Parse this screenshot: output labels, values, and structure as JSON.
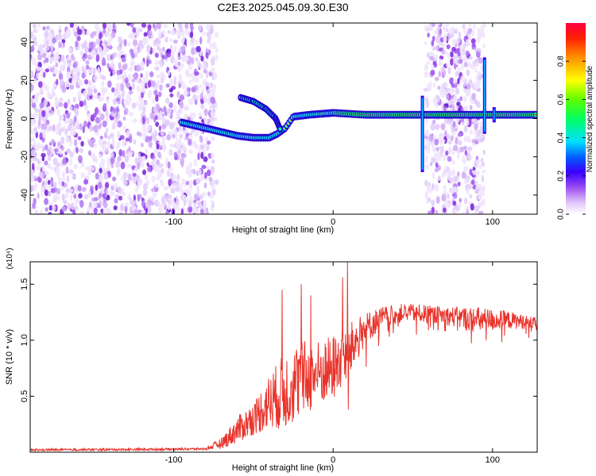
{
  "title": "C2E3.2025.045.09.30.E30",
  "chart_data": [
    {
      "type": "heatmap",
      "xlabel": "Height of straight line (km)",
      "ylabel": "Frequency (Hz)",
      "xlim": [
        -190,
        128
      ],
      "ylim": [
        -50,
        50
      ],
      "x_ticks": [
        -100,
        0,
        100
      ],
      "y_ticks": [
        -40,
        -20,
        0,
        20,
        40
      ],
      "colorbar": {
        "label": "Normalized spectral amplitude",
        "range": [
          0,
          1
        ],
        "ticks": [
          "0.0",
          "0.2",
          "0.4",
          "0.6",
          "0.8"
        ],
        "tick_values": [
          0.0,
          0.2,
          0.4,
          0.6,
          0.8
        ],
        "colormap": [
          "#ffffff",
          "#d8b8f8",
          "#8a2be2",
          "#0000ff",
          "#00ffff",
          "#00ff00",
          "#ffff00",
          "#ff8000",
          "#ff0000"
        ]
      },
      "noise_regions": [
        {
          "x": [
            -190,
            -73
          ],
          "y": [
            -50,
            50
          ]
        },
        {
          "x": [
            58,
            95
          ],
          "y": [
            -50,
            50
          ]
        }
      ],
      "signal_track": [
        {
          "x": -95,
          "y": -2
        },
        {
          "x": -80,
          "y": -5
        },
        {
          "x": -70,
          "y": -7
        },
        {
          "x": -60,
          "y": -9
        },
        {
          "x": -50,
          "y": -10
        },
        {
          "x": -40,
          "y": -10
        },
        {
          "x": -35,
          "y": -8
        },
        {
          "x": -30,
          "y": -5
        },
        {
          "x": -25,
          "y": 1
        },
        {
          "x": -15,
          "y": 2
        },
        {
          "x": 0,
          "y": 3
        },
        {
          "x": 20,
          "y": 2
        },
        {
          "x": 50,
          "y": 2
        },
        {
          "x": 56,
          "y": 2
        },
        {
          "x": 62,
          "y": 2
        },
        {
          "x": 95,
          "y": 2
        },
        {
          "x": 100,
          "y": 2
        },
        {
          "x": 128,
          "y": 2
        }
      ],
      "secondary_track": [
        {
          "x": -58,
          "y": 11
        },
        {
          "x": -50,
          "y": 9
        },
        {
          "x": -42,
          "y": 5
        },
        {
          "x": -36,
          "y": 0
        },
        {
          "x": -33,
          "y": -6
        }
      ]
    },
    {
      "type": "line",
      "xlabel": "Height of straight line (km)",
      "ylabel": "SNR (10 * v/v)",
      "y_multiplier": "(x10⁴)",
      "xlim": [
        -190,
        128
      ],
      "ylim": [
        0,
        1.7
      ],
      "x_ticks": [
        -100,
        0,
        100
      ],
      "y_ticks": [
        0.5,
        1.0,
        1.5
      ],
      "y_tick_labels": [
        "0.5",
        "1.0",
        "1.5"
      ],
      "color": "#e8342c",
      "series_envelope": [
        {
          "x": -190,
          "mean": 0.02,
          "spread": 0.01
        },
        {
          "x": -120,
          "mean": 0.025,
          "spread": 0.01
        },
        {
          "x": -80,
          "mean": 0.03,
          "spread": 0.01
        },
        {
          "x": -70,
          "mean": 0.08,
          "spread": 0.05
        },
        {
          "x": -60,
          "mean": 0.2,
          "spread": 0.12
        },
        {
          "x": -50,
          "mean": 0.3,
          "spread": 0.15
        },
        {
          "x": -40,
          "mean": 0.45,
          "spread": 0.25
        },
        {
          "x": -30,
          "mean": 0.55,
          "spread": 0.35
        },
        {
          "x": -20,
          "mean": 0.65,
          "spread": 0.35
        },
        {
          "x": -10,
          "mean": 0.7,
          "spread": 0.3
        },
        {
          "x": 0,
          "mean": 0.75,
          "spread": 0.3
        },
        {
          "x": 10,
          "mean": 0.9,
          "spread": 0.25
        },
        {
          "x": 20,
          "mean": 1.1,
          "spread": 0.15
        },
        {
          "x": 30,
          "mean": 1.2,
          "spread": 0.1
        },
        {
          "x": 45,
          "mean": 1.25,
          "spread": 0.08
        },
        {
          "x": 70,
          "mean": 1.22,
          "spread": 0.08
        },
        {
          "x": 90,
          "mean": 1.18,
          "spread": 0.12
        },
        {
          "x": 110,
          "mean": 1.18,
          "spread": 0.08
        },
        {
          "x": 128,
          "mean": 1.15,
          "spread": 0.05
        }
      ],
      "spikes": [
        {
          "x": -32,
          "y": 1.45
        },
        {
          "x": -20,
          "y": 1.5
        },
        {
          "x": -14,
          "y": 1.4
        },
        {
          "x": 6,
          "y": 1.56
        },
        {
          "x": 9,
          "y": 1.7
        }
      ],
      "dips": [
        {
          "x": 9,
          "y": 0.38
        }
      ]
    }
  ]
}
